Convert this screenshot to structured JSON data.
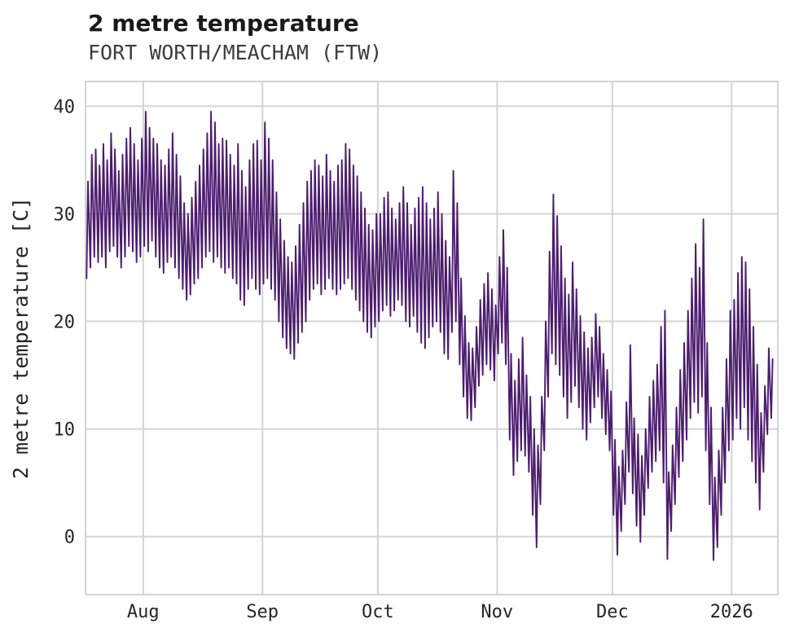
{
  "header": {
    "title": "2 metre temperature",
    "subtitle": "FORT WORTH/MEACHAM (FTW)"
  },
  "chart_data": {
    "type": "line",
    "title": "2 metre temperature",
    "subtitle": "FORT WORTH/MEACHAM (FTW)",
    "xlabel": "",
    "ylabel": "2 metre temperature [C]",
    "line_color": "#4c1d6e",
    "grid": true,
    "grid_color": "#d4d4d4",
    "tick_label_color": "#262626",
    "legend": "none",
    "x_tick_labels": [
      "Aug",
      "Sep",
      "Oct",
      "Nov",
      "Dec",
      "2026"
    ],
    "x_tick_days": [
      15,
      46,
      76,
      107,
      137,
      168
    ],
    "y_ticks": [
      0,
      10,
      20,
      30,
      40
    ],
    "xlim": [
      0,
      180
    ],
    "ylim": [
      -5.4,
      42.3
    ],
    "x_unit": "days (hourly trace spanning late Jul through early Jan 2026)",
    "resolution": "daily min/max estimated from the hourly oscillating trace",
    "series": [
      {
        "name": "2 metre temperature",
        "daily_min": [
          24,
          25,
          26,
          25.5,
          26,
          25,
          26.5,
          27,
          26,
          25,
          26,
          27,
          26.5,
          25.5,
          26,
          27,
          26.5,
          27.5,
          26,
          25,
          24.5,
          25.5,
          26,
          25,
          24,
          23,
          22,
          22.5,
          23.5,
          24,
          25,
          26,
          26.5,
          25.5,
          26,
          25,
          24.5,
          25,
          24,
          23.5,
          22,
          21.5,
          23,
          24,
          23,
          22.5,
          23.5,
          24,
          23,
          22,
          20,
          18.5,
          17.5,
          17,
          16.5,
          18,
          19,
          20,
          22,
          23,
          23.5,
          22.5,
          23,
          24,
          23,
          22.5,
          23,
          23.5,
          24,
          23,
          22,
          21,
          20,
          19,
          18.5,
          19.5,
          20,
          21,
          21.5,
          20.5,
          21,
          22,
          21.5,
          20,
          19.5,
          20.5,
          19,
          18,
          17.5,
          18.5,
          19.5,
          20,
          19,
          17,
          16.5,
          19,
          20,
          16,
          13,
          11,
          10.8,
          12,
          14,
          15,
          16,
          15.5,
          14.5,
          17,
          18,
          16,
          9,
          5.7,
          7,
          8,
          7.5,
          6,
          2,
          -1,
          3,
          8,
          13,
          17,
          16,
          15,
          13,
          11,
          12.5,
          14,
          12,
          10,
          9,
          10.6,
          12,
          13,
          11,
          9.5,
          8,
          2,
          -1.7,
          0.5,
          3,
          6,
          4,
          1,
          -0.5,
          2,
          4.5,
          6,
          7,
          8,
          5,
          -2.1,
          0.5,
          3,
          5.5,
          7,
          9,
          11,
          12.5,
          11.5,
          13,
          8,
          3,
          -2.2,
          -1,
          2,
          5,
          8,
          9,
          11,
          10,
          12,
          9,
          7,
          5,
          2.5,
          6,
          9.5,
          11
        ],
        "daily_max": [
          33,
          35.5,
          36,
          34.5,
          36.5,
          35,
          37.5,
          36,
          34,
          35.5,
          37,
          38,
          36.5,
          35,
          37,
          39.5,
          38,
          37,
          36.5,
          35,
          34.5,
          36,
          37.5,
          35.5,
          33.5,
          31,
          30,
          31.5,
          33,
          34.5,
          36,
          37.5,
          39.5,
          38.5,
          36.5,
          37,
          36.8,
          35.5,
          34.5,
          36.5,
          34,
          32.5,
          35,
          36.5,
          36.8,
          35,
          38.5,
          37,
          35,
          32,
          29.5,
          27.5,
          26,
          25.5,
          27,
          29,
          31,
          33,
          34,
          35,
          34.5,
          33.5,
          35.5,
          34,
          33,
          34.5,
          35,
          36.5,
          36,
          34.5,
          33.5,
          32,
          30.5,
          29,
          28.5,
          30,
          30,
          31.5,
          32,
          30.5,
          29.5,
          31,
          32.5,
          31,
          29,
          30.5,
          31.5,
          32.5,
          31,
          29.5,
          30.5,
          32,
          30,
          27.5,
          26,
          34,
          31,
          24,
          20.5,
          18,
          17.5,
          19.5,
          22,
          23.5,
          24.5,
          23,
          21.5,
          26,
          28.5,
          25,
          17,
          14.5,
          16.5,
          18.5,
          15,
          13,
          10,
          8.5,
          13,
          20,
          26.5,
          31.8,
          29.8,
          27,
          24,
          22.5,
          25.5,
          23,
          20.5,
          19,
          17.5,
          18.5,
          20.7,
          19.5,
          17,
          15.5,
          13.5,
          9,
          6.5,
          8,
          12.5,
          17.8,
          11,
          9.5,
          7.5,
          10,
          13,
          14.5,
          16,
          19.5,
          21,
          6,
          8.5,
          12,
          15.5,
          18,
          21,
          24,
          27.2,
          25,
          29.5,
          18,
          12,
          5.5,
          8,
          12,
          16.5,
          21,
          22,
          24.5,
          26,
          25.5,
          23,
          19.5,
          16,
          11.5,
          14,
          17.5,
          16.5
        ]
      }
    ]
  }
}
